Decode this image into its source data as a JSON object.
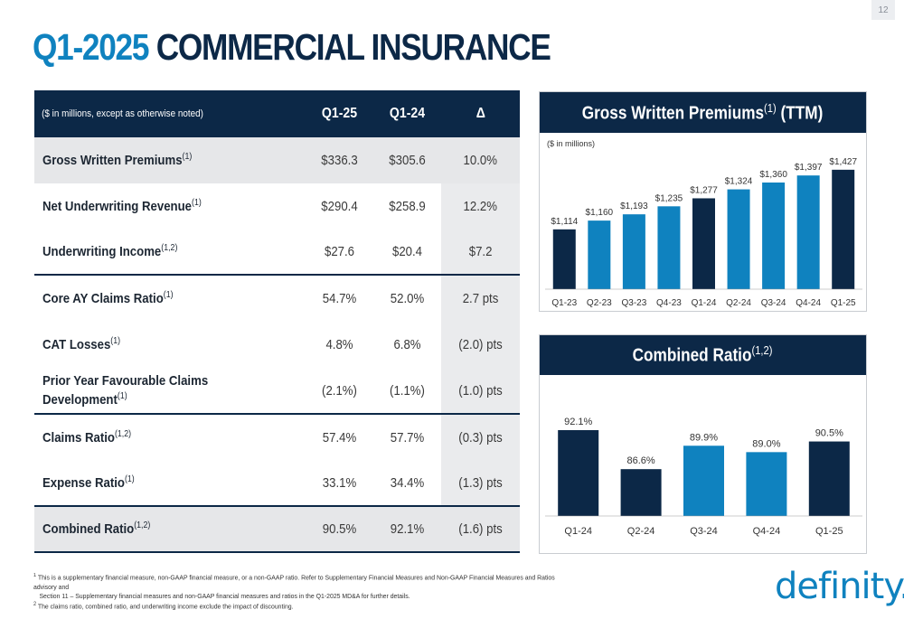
{
  "page_number": "12",
  "title": {
    "accent": "Q1-2025",
    "main": "COMMERCIAL INSURANCE"
  },
  "table": {
    "header": {
      "note": "($ in millions, except as otherwise noted)",
      "col1": "Q1-25",
      "col2": "Q1-24",
      "col3": "Δ"
    },
    "rows": [
      {
        "label": "Gross Written Premiums",
        "sup": "(1)",
        "q125": "$336.3",
        "q124": "$305.6",
        "delta": "10.0%"
      },
      {
        "label": "Net Underwriting Revenue",
        "sup": "(1)",
        "q125": "$290.4",
        "q124": "$258.9",
        "delta": "12.2%"
      },
      {
        "label": "Underwriting Income",
        "sup": "(1,2)",
        "q125": "$27.6",
        "q124": "$20.4",
        "delta": "$7.2"
      },
      {
        "label": "Core AY Claims Ratio",
        "sup": "(1)",
        "q125": "54.7%",
        "q124": "52.0%",
        "delta": "2.7 pts"
      },
      {
        "label": "CAT Losses",
        "sup": "(1)",
        "q125": "4.8%",
        "q124": "6.8%",
        "delta": "(2.0) pts"
      },
      {
        "label_line1": "Prior Year Favourable Claims",
        "label_line2": "Development",
        "sup": "(1)",
        "q125": "(2.1%)",
        "q124": "(1.1%)",
        "delta": "(1.0) pts"
      },
      {
        "label": "Claims Ratio",
        "sup": "(1,2)",
        "q125": "57.4%",
        "q124": "57.7%",
        "delta": "(0.3) pts"
      },
      {
        "label": "Expense Ratio",
        "sup": "(1)",
        "q125": "33.1%",
        "q124": "34.4%",
        "delta": "(1.3) pts"
      },
      {
        "label": "Combined Ratio",
        "sup": "(1,2)",
        "q125": "90.5%",
        "q124": "92.1%",
        "delta": "(1.6) pts"
      }
    ]
  },
  "gwp_panel": {
    "title": "Gross Written Premiums",
    "sup": "(1)",
    "suffix": "(TTM)"
  },
  "cr_panel": {
    "title": "Combined Ratio",
    "sup": "(1,2)"
  },
  "colors": {
    "navy": "#0c2847",
    "blue": "#0f82bf"
  },
  "chart_data": [
    {
      "type": "bar",
      "title": "Gross Written Premiums (1) (TTM)",
      "ylabel": "($ in millions)",
      "categories": [
        "Q1-23",
        "Q2-23",
        "Q3-23",
        "Q4-23",
        "Q1-24",
        "Q2-24",
        "Q3-24",
        "Q4-24",
        "Q1-25"
      ],
      "values": [
        1114,
        1160,
        1193,
        1235,
        1277,
        1324,
        1360,
        1397,
        1427
      ],
      "labels": [
        "$1,114",
        "$1,160",
        "$1,193",
        "$1,235",
        "$1,277",
        "$1,324",
        "$1,360",
        "$1,397",
        "$1,427"
      ],
      "bar_colors": [
        "navy",
        "blue",
        "blue",
        "blue",
        "navy",
        "blue",
        "blue",
        "blue",
        "navy"
      ],
      "ylim": [
        800,
        1450
      ],
      "grid": false
    },
    {
      "type": "bar",
      "title": "Combined Ratio (1,2)",
      "categories": [
        "Q1-24",
        "Q2-24",
        "Q3-24",
        "Q4-24",
        "Q1-25"
      ],
      "values": [
        92.1,
        86.6,
        89.9,
        89.0,
        90.5
      ],
      "labels": [
        "92.1%",
        "86.6%",
        "89.9%",
        "89.0%",
        "90.5%"
      ],
      "bar_colors": [
        "navy",
        "navy",
        "blue",
        "blue",
        "navy"
      ],
      "ylim": [
        80,
        93.5
      ],
      "grid": false
    }
  ],
  "footnotes": {
    "fn1_sup": "1",
    "fn1_line1": "This is a supplementary financial measure, non-GAAP financial measure, or a non-GAAP ratio. Refer to Supplementary Financial Measures and Non-GAAP Financial Measures and Ratios advisory and",
    "fn1_line2": "Section 11 – Supplementary financial measures and non-GAAP financial measures and ratios in the Q1-2025 MD&A for further details.",
    "fn2_sup": "2",
    "fn2_line1": "The claims ratio, combined ratio, and underwriting income exclude the impact of discounting."
  },
  "logo": {
    "text": "definity."
  }
}
